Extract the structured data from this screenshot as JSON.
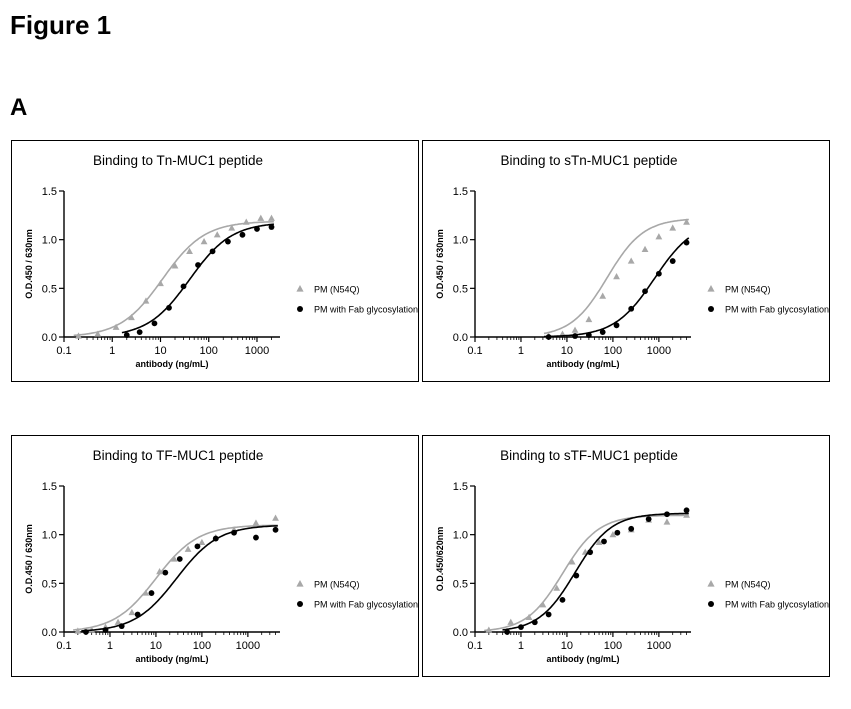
{
  "figure_title": "Figure 1",
  "panel_label": "A",
  "legend_marker_symbols": {
    "triangle": "▲",
    "circle": "●"
  },
  "colors": {
    "series_gray": "#a8a8a8",
    "series_black": "#000000",
    "frame": "#000000"
  },
  "chart_data": [
    {
      "type": "scatter",
      "title": "Binding to Tn-MUC1 peptide",
      "xlabel": "antibody (ng/mL)",
      "ylabel": "O.D.450 / 630nm",
      "x_scale": "log",
      "xlim": [
        0.1,
        3000
      ],
      "ylim": [
        0,
        1.5
      ],
      "x_ticks": [
        "0.1",
        "1",
        "10",
        "100",
        "1000"
      ],
      "y_ticks": [
        "0.0",
        "0.5",
        "1.0",
        "1.5"
      ],
      "grid": false,
      "legend_position": "right",
      "series": [
        {
          "name": "PM (N54Q)",
          "marker": "triangle",
          "color": "#a8a8a8",
          "x": [
            0.2,
            0.5,
            1.2,
            2.5,
            5,
            10,
            20,
            40,
            80,
            150,
            300,
            600,
            1200,
            2000
          ],
          "y": [
            0.01,
            0.03,
            0.1,
            0.2,
            0.37,
            0.55,
            0.73,
            0.88,
            0.98,
            1.05,
            1.12,
            1.18,
            1.22,
            1.22
          ],
          "fit": {
            "bottom": 0.0,
            "top": 1.19,
            "ec50": 11,
            "hill": 1.0
          }
        },
        {
          "name": "PM with Fab glycosylation",
          "marker": "circle",
          "color": "#000000",
          "x": [
            2,
            3.7,
            7.5,
            15,
            30,
            60,
            120,
            250,
            500,
            1000,
            2000
          ],
          "y": [
            0.02,
            0.05,
            0.14,
            0.3,
            0.52,
            0.74,
            0.88,
            0.98,
            1.05,
            1.11,
            1.13
          ],
          "fit": {
            "bottom": 0.0,
            "top": 1.18,
            "ec50": 40,
            "hill": 1.0
          }
        }
      ]
    },
    {
      "type": "scatter",
      "title": "Binding to sTn-MUC1 peptide",
      "xlabel": "antibody (ng/mL)",
      "ylabel": "O.D.450 / 630nm",
      "x_scale": "log",
      "xlim": [
        0.1,
        5000
      ],
      "ylim": [
        0,
        1.5
      ],
      "x_ticks": [
        "0.1",
        "1",
        "10",
        "100",
        "1000"
      ],
      "y_ticks": [
        "0.0",
        "0.5",
        "1.0",
        "1.5"
      ],
      "grid": false,
      "legend_position": "right",
      "series": [
        {
          "name": "PM (N54Q)",
          "marker": "triangle",
          "color": "#a8a8a8",
          "x": [
            4,
            8,
            15,
            30,
            60,
            120,
            250,
            500,
            1000,
            2000,
            4000
          ],
          "y": [
            0.01,
            0.03,
            0.07,
            0.18,
            0.42,
            0.62,
            0.78,
            0.9,
            1.03,
            1.12,
            1.18
          ],
          "fit": {
            "bottom": 0.0,
            "top": 1.22,
            "ec50": 75,
            "hill": 1.1
          }
        },
        {
          "name": "PM with Fab glycosylation",
          "marker": "circle",
          "color": "#000000",
          "x": [
            4,
            15,
            30,
            60,
            120,
            250,
            500,
            1000,
            2000,
            4000
          ],
          "y": [
            0.0,
            0.01,
            0.02,
            0.05,
            0.12,
            0.29,
            0.47,
            0.65,
            0.78,
            0.97
          ],
          "fit": {
            "bottom": 0.0,
            "top": 1.2,
            "ec50": 800,
            "hill": 1.0
          }
        }
      ]
    },
    {
      "type": "scatter",
      "title": "Binding to TF-MUC1 peptide",
      "xlabel": "antibody (ng/mL)",
      "ylabel": "O.D.450 / 630nm",
      "x_scale": "log",
      "xlim": [
        0.1,
        5000
      ],
      "ylim": [
        0,
        1.5
      ],
      "x_ticks": [
        "0.1",
        "1",
        "10",
        "100",
        "1000"
      ],
      "y_ticks": [
        "0.0",
        "0.5",
        "1.0",
        "1.5"
      ],
      "grid": false,
      "legend_position": "right",
      "series": [
        {
          "name": "PM (N54Q)",
          "marker": "triangle",
          "color": "#a8a8a8",
          "x": [
            0.2,
            0.4,
            0.8,
            1.5,
            3,
            6,
            12,
            25,
            50,
            100,
            200,
            500,
            1500,
            4000
          ],
          "y": [
            0.01,
            0.02,
            0.05,
            0.1,
            0.2,
            0.4,
            0.62,
            0.75,
            0.85,
            0.92,
            0.97,
            1.05,
            1.12,
            1.17
          ],
          "fit": {
            "bottom": 0.0,
            "top": 1.1,
            "ec50": 10,
            "hill": 0.95
          }
        },
        {
          "name": "PM with Fab glycosylation",
          "marker": "circle",
          "color": "#000000",
          "x": [
            0.3,
            0.8,
            1.8,
            4,
            8,
            16,
            33,
            80,
            200,
            500,
            1500,
            4000
          ],
          "y": [
            0.0,
            0.02,
            0.06,
            0.18,
            0.4,
            0.61,
            0.75,
            0.88,
            0.96,
            1.02,
            0.97,
            1.05
          ],
          "fit": {
            "bottom": 0.0,
            "top": 1.1,
            "ec50": 28,
            "hill": 0.95
          }
        }
      ]
    },
    {
      "type": "scatter",
      "title": "Binding to sTF-MUC1 peptide",
      "xlabel": "antibody (ng/mL)",
      "ylabel": "O.D.450/620nm",
      "x_scale": "log",
      "xlim": [
        0.1,
        5000
      ],
      "ylim": [
        0,
        1.5
      ],
      "x_ticks": [
        "0.1",
        "1",
        "10",
        "100",
        "1000"
      ],
      "y_ticks": [
        "0.0",
        "0.5",
        "1.0",
        "1.5"
      ],
      "grid": false,
      "legend_position": "right",
      "series": [
        {
          "name": "PM (N54Q)",
          "marker": "triangle",
          "color": "#a8a8a8",
          "x": [
            0.2,
            0.6,
            1.5,
            3,
            6,
            13,
            25,
            50,
            100,
            250,
            600,
            1500,
            4000
          ],
          "y": [
            0.02,
            0.1,
            0.15,
            0.28,
            0.45,
            0.72,
            0.82,
            0.92,
            1.0,
            1.05,
            1.15,
            1.13,
            1.2
          ],
          "fit": {
            "bottom": 0.0,
            "top": 1.2,
            "ec50": 8,
            "hill": 1.1
          }
        },
        {
          "name": "PM with Fab glycosylation",
          "marker": "circle",
          "color": "#000000",
          "x": [
            0.5,
            1,
            2,
            4,
            8,
            16,
            32,
            64,
            125,
            250,
            600,
            1500,
            4000
          ],
          "y": [
            0.0,
            0.05,
            0.1,
            0.18,
            0.33,
            0.58,
            0.82,
            0.93,
            1.02,
            1.06,
            1.16,
            1.21,
            1.25
          ],
          "fit": {
            "bottom": 0.0,
            "top": 1.22,
            "ec50": 15,
            "hill": 1.1
          }
        }
      ]
    }
  ]
}
